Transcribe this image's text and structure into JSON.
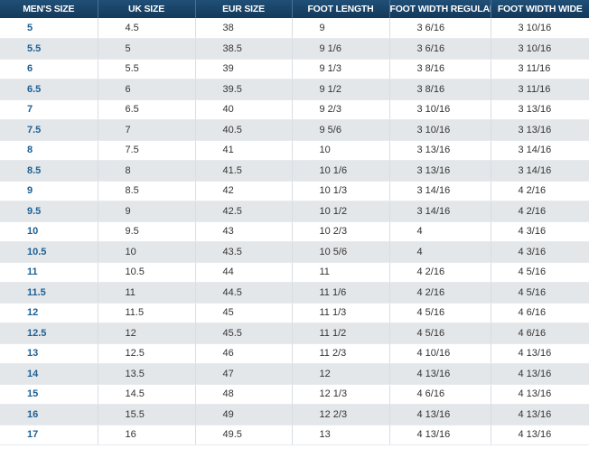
{
  "table": {
    "headers": [
      "MEN'S SIZE",
      "UK SIZE",
      "EUR SIZE",
      "FOOT LENGTH",
      "FOOT WIDTH REGULAR",
      "FOOT WIDTH WIDE"
    ],
    "rows": [
      [
        "5",
        "4.5",
        "38",
        "9",
        "3 6/16",
        "3 10/16"
      ],
      [
        "5.5",
        "5",
        "38.5",
        "9 1/6",
        "3 6/16",
        "3 10/16"
      ],
      [
        "6",
        "5.5",
        "39",
        "9 1/3",
        "3 8/16",
        "3 11/16"
      ],
      [
        "6.5",
        "6",
        "39.5",
        "9 1/2",
        "3 8/16",
        "3 11/16"
      ],
      [
        "7",
        "6.5",
        "40",
        "9 2/3",
        "3 10/16",
        "3 13/16"
      ],
      [
        "7.5",
        "7",
        "40.5",
        "9 5/6",
        "3 10/16",
        "3 13/16"
      ],
      [
        "8",
        "7.5",
        "41",
        "10",
        "3 13/16",
        "3 14/16"
      ],
      [
        "8.5",
        "8",
        "41.5",
        "10 1/6",
        "3 13/16",
        "3 14/16"
      ],
      [
        "9",
        "8.5",
        "42",
        "10 1/3",
        "3 14/16",
        "4 2/16"
      ],
      [
        "9.5",
        "9",
        "42.5",
        "10 1/2",
        "3 14/16",
        "4 2/16"
      ],
      [
        "10",
        "9.5",
        "43",
        "10 2/3",
        "4",
        "4 3/16"
      ],
      [
        "10.5",
        "10",
        "43.5",
        "10 5/6",
        "4",
        "4 3/16"
      ],
      [
        "11",
        "10.5",
        "44",
        "11",
        "4 2/16",
        "4 5/16"
      ],
      [
        "11.5",
        "11",
        "44.5",
        "11 1/6",
        "4 2/16",
        "4 5/16"
      ],
      [
        "12",
        "11.5",
        "45",
        "11 1/3",
        "4 5/16",
        "4 6/16"
      ],
      [
        "12.5",
        "12",
        "45.5",
        "11 1/2",
        "4 5/16",
        "4 6/16"
      ],
      [
        "13",
        "12.5",
        "46",
        "11 2/3",
        "4 10/16",
        "4 13/16"
      ],
      [
        "14",
        "13.5",
        "47",
        "12",
        "4 13/16",
        "4 13/16"
      ],
      [
        "15",
        "14.5",
        "48",
        "12 1/3",
        "4 6/16",
        "4 13/16"
      ],
      [
        "16",
        "15.5",
        "49",
        "12 2/3",
        "4 13/16",
        "4 13/16"
      ],
      [
        "17",
        "16",
        "49.5",
        "13",
        "4 13/16",
        "4 13/16"
      ]
    ]
  },
  "colors": {
    "header_bg": "#1a456b",
    "size_text": "#1c5f94",
    "stripe": "#e4e7ea"
  }
}
